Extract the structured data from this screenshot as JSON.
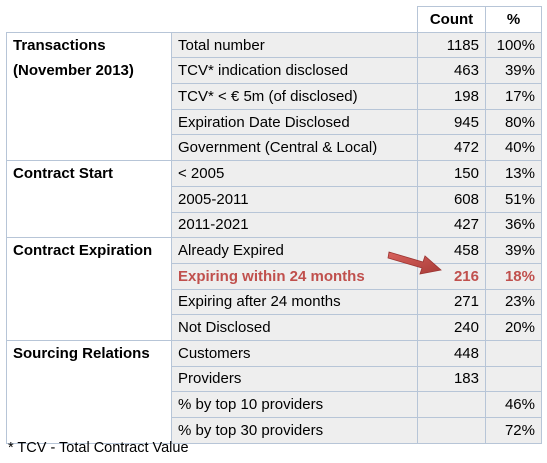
{
  "header": {
    "count": "Count",
    "pct": "%"
  },
  "rows": [
    {
      "section": "Transactions",
      "label": "Total number",
      "count": "1185",
      "pct": "100%"
    },
    {
      "section": "(November 2013)",
      "label": "TCV* indication disclosed",
      "count": "463",
      "pct": "39%"
    },
    {
      "section": "",
      "label": "TCV* < € 5m  (of disclosed)",
      "count": "198",
      "pct": "17%"
    },
    {
      "section": "",
      "label": "Expiration Date Disclosed",
      "count": "945",
      "pct": "80%"
    },
    {
      "section": "",
      "label": "Government (Central & Local)",
      "count": "472",
      "pct": "40%"
    },
    {
      "section": "Contract Start",
      "label": "< 2005",
      "count": "150",
      "pct": "13%"
    },
    {
      "section": "",
      "label": "2005-2011",
      "count": "608",
      "pct": "51%"
    },
    {
      "section": "",
      "label": "2011-2021",
      "count": "427",
      "pct": "36%"
    },
    {
      "section": "Contract Expiration",
      "label": "Already Expired",
      "count": "458",
      "pct": "39%"
    },
    {
      "section": "",
      "label": "Expiring within 24 months",
      "count": "216",
      "pct": "18%"
    },
    {
      "section": "",
      "label": "Expiring after 24 months",
      "count": "271",
      "pct": "23%"
    },
    {
      "section": "",
      "label": "Not Disclosed",
      "count": "240",
      "pct": "20%"
    },
    {
      "section": "Sourcing Relations",
      "label": "Customers",
      "count": "448",
      "pct": ""
    },
    {
      "section": "",
      "label": "Providers",
      "count": "183",
      "pct": ""
    },
    {
      "section": "",
      "label": "% by top 10 providers",
      "count": "",
      "pct": "46%"
    },
    {
      "section": "",
      "label": "% by top 30 providers",
      "count": "",
      "pct": "72%"
    }
  ],
  "footnote": "* TCV - Total Contract Value",
  "colors": {
    "highlight": "#c0504d",
    "cell_bg": "#eeeeee",
    "border": "#b7c5d7"
  }
}
